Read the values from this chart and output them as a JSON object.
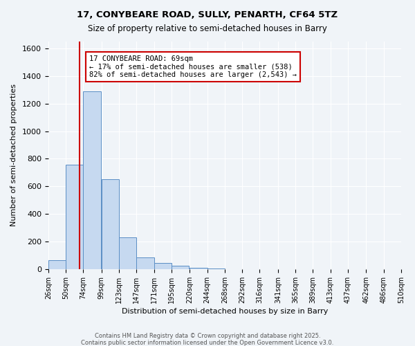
{
  "title1": "17, CONYBEARE ROAD, SULLY, PENARTH, CF64 5TZ",
  "title2": "Size of property relative to semi-detached houses in Barry",
  "xlabel": "Distribution of semi-detached houses by size in Barry",
  "ylabel": "Number of semi-detached properties",
  "bar_labels": [
    "26sqm",
    "50sqm",
    "74sqm",
    "99sqm",
    "123sqm",
    "147sqm",
    "171sqm",
    "195sqm",
    "220sqm",
    "244sqm",
    "268sqm",
    "292sqm",
    "316sqm",
    "341sqm",
    "365sqm",
    "389sqm",
    "413sqm",
    "437sqm",
    "462sqm",
    "486sqm",
    "510sqm"
  ],
  "bar_values": [
    65,
    755,
    1290,
    650,
    230,
    85,
    45,
    25,
    10,
    5,
    2,
    1,
    0,
    0,
    0,
    0,
    0,
    0,
    0,
    0,
    0
  ],
  "bar_color": "#c6d9f0",
  "bar_edge_color": "#5a8ec5",
  "property_line_x": 69,
  "bin_edges": [
    26,
    50,
    74,
    99,
    123,
    147,
    171,
    195,
    220,
    244,
    268,
    292,
    316,
    341,
    365,
    389,
    413,
    437,
    462,
    486,
    510
  ],
  "annotation_title": "17 CONYBEARE ROAD: 69sqm",
  "annotation_line1": "← 17% of semi-detached houses are smaller (538)",
  "annotation_line2": "82% of semi-detached houses are larger (2,543) →",
  "vline_color": "#cc0000",
  "annotation_box_edge": "#cc0000",
  "ylim": [
    0,
    1650
  ],
  "yticks": [
    0,
    200,
    400,
    600,
    800,
    1000,
    1200,
    1400,
    1600
  ],
  "background_color": "#f0f4f8",
  "footer1": "Contains HM Land Registry data © Crown copyright and database right 2025.",
  "footer2": "Contains public sector information licensed under the Open Government Licence v3.0."
}
